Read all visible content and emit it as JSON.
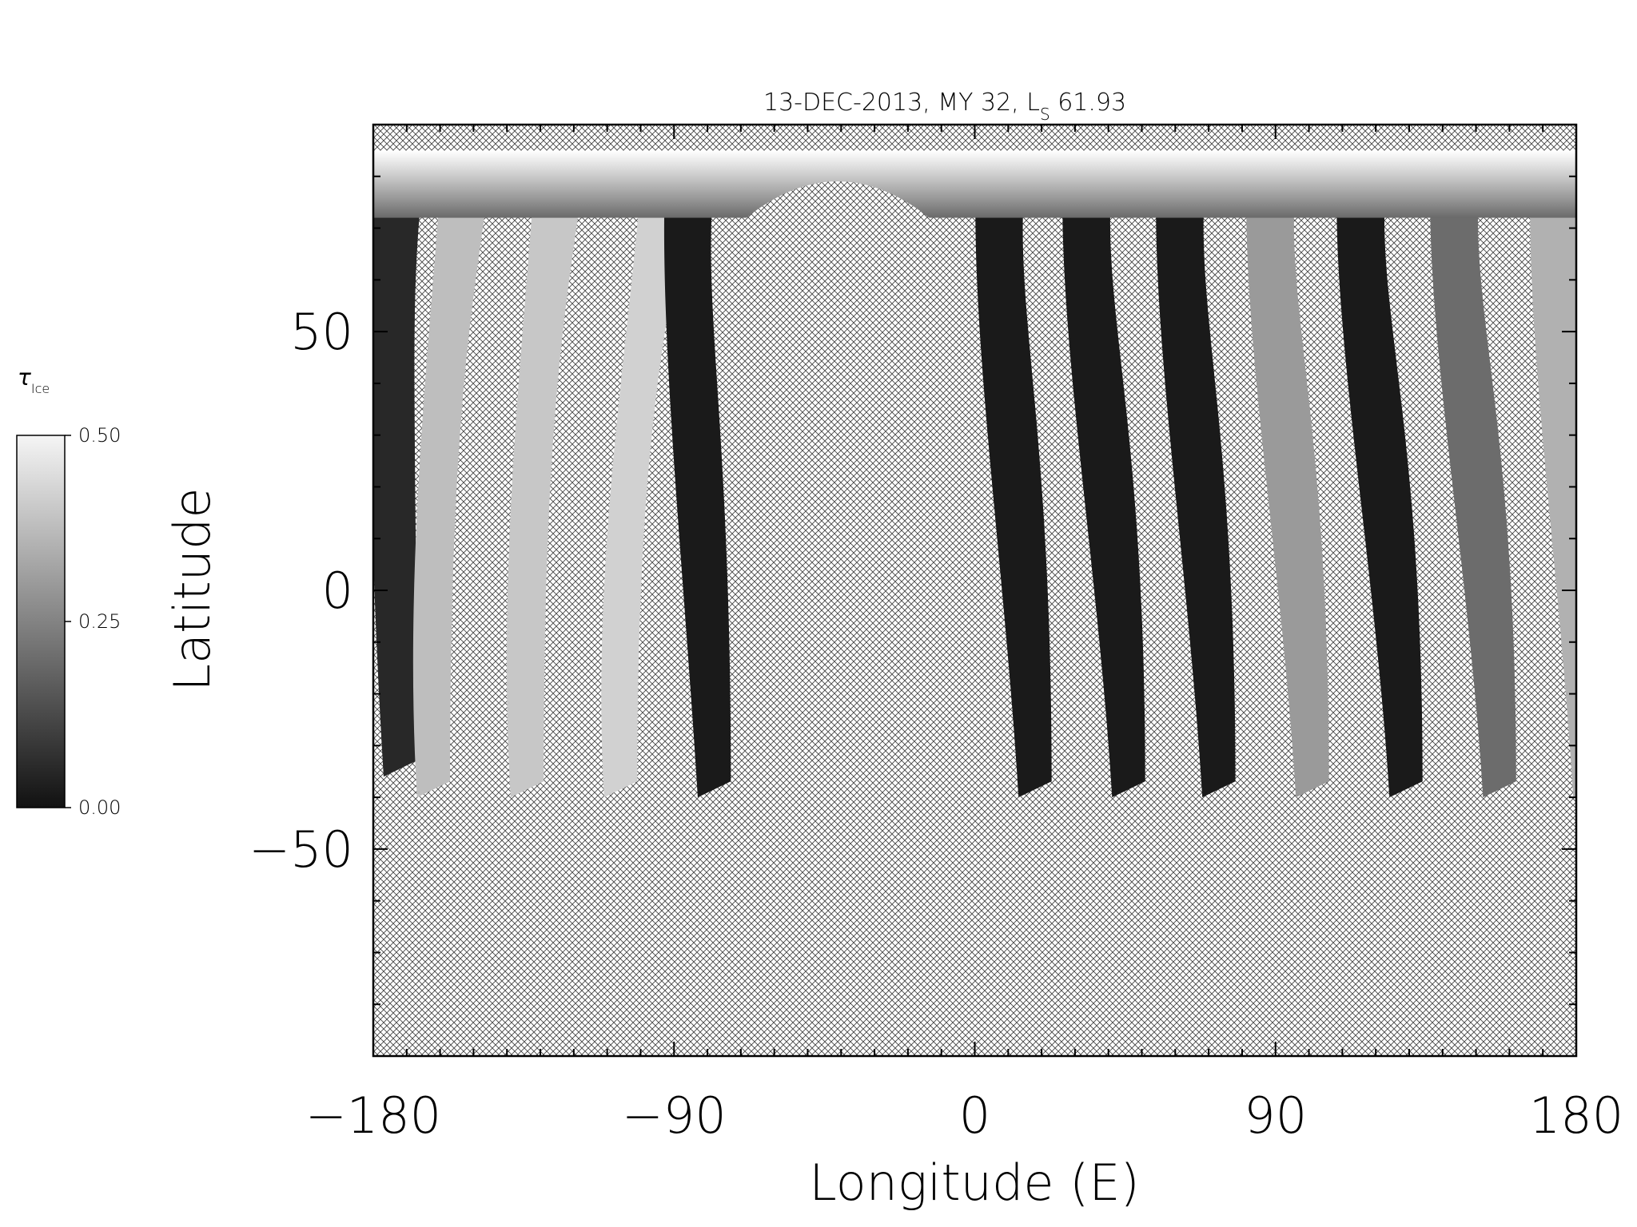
{
  "title": {
    "date_text": "13-DEC-2013, MY 32,  L",
    "ls_subscript": "S",
    "ls_value": " 61.93"
  },
  "axes": {
    "xlabel": "Longitude (E)",
    "ylabel": "Latitude",
    "x_range": [
      -180,
      180
    ],
    "y_range": [
      -90,
      90
    ],
    "x_ticks": [
      {
        "value": -180,
        "label": "−180"
      },
      {
        "value": -90,
        "label": "−90"
      },
      {
        "value": 0,
        "label": "0"
      },
      {
        "value": 90,
        "label": "90"
      },
      {
        "value": 180,
        "label": "180"
      }
    ],
    "y_ticks": [
      {
        "value": 50,
        "label": "50"
      },
      {
        "value": 0,
        "label": "0"
      },
      {
        "value": -50,
        "label": "−50"
      }
    ]
  },
  "colorbar": {
    "symbol": "τ",
    "symbol_subscript": "Ice",
    "ticks": [
      {
        "value": 0.5,
        "label": "0.50"
      },
      {
        "value": 0.25,
        "label": "0.25"
      },
      {
        "value": 0.0,
        "label": "0.00"
      }
    ],
    "range": [
      0.0,
      0.5
    ],
    "colors": {
      "low": "#111111",
      "high": "#f5f5f5"
    }
  },
  "chart_data": {
    "type": "heatmap",
    "title": "13-DEC-2013, MY 32,  Ls 61.93",
    "xlabel": "Longitude (E)",
    "ylabel": "Latitude",
    "xlim": [
      -180,
      180
    ],
    "ylim": [
      -90,
      90
    ],
    "value_name": "τ Ice",
    "value_range": [
      0.0,
      0.5
    ],
    "no_data_pattern": "crosshatch",
    "swaths": [
      {
        "lon_bottom": -178,
        "lon_top": -178,
        "lat_bottom": -36,
        "tau": 0.05
      },
      {
        "lon_bottom": -168,
        "lon_top": -158,
        "lat_bottom": -40,
        "tau": 0.38
      },
      {
        "lon_bottom": -140,
        "lon_top": -130,
        "lat_bottom": -40,
        "tau": 0.4
      },
      {
        "lon_bottom": -112,
        "lon_top": -98,
        "lat_bottom": -40,
        "tau": 0.42
      },
      {
        "lon_bottom": -84,
        "lon_top": -91,
        "lat_bottom": -40,
        "tau": 0.02
      },
      {
        "lon_bottom": 12,
        "lon_top": 2,
        "lat_bottom": -40,
        "tau": 0.02
      },
      {
        "lon_bottom": 40,
        "lon_top": 28,
        "lat_bottom": -40,
        "tau": 0.02
      },
      {
        "lon_bottom": 67,
        "lon_top": 56,
        "lat_bottom": -40,
        "tau": 0.02
      },
      {
        "lon_bottom": 95,
        "lon_top": 83,
        "lat_bottom": -40,
        "tau": 0.3
      },
      {
        "lon_bottom": 123,
        "lon_top": 110,
        "lat_bottom": -40,
        "tau": 0.02
      },
      {
        "lon_bottom": 151,
        "lon_top": 138,
        "lat_bottom": -40,
        "tau": 0.2
      },
      {
        "lon_bottom": 178,
        "lon_top": 168,
        "lat_bottom": -40,
        "tau": 0.35
      }
    ],
    "polar_band": {
      "lat_min": 70,
      "lat_max": 85,
      "tau_range": [
        0.1,
        0.5
      ]
    }
  }
}
